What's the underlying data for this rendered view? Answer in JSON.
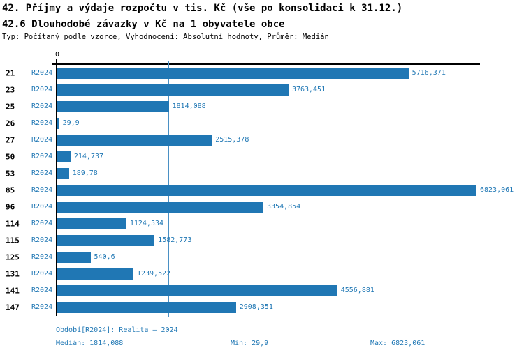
{
  "colors": {
    "accent_text": "#1f77b4",
    "bar": "#2077b4",
    "median_line": "#4a90c4",
    "axis": "#000000"
  },
  "header": {
    "title": "42. Příjmy a výdaje rozpočtu v tis. Kč (vše po konsolidaci k 31.12.)",
    "subtitle": "42.6 Dlouhodobé závazky v Kč na 1 obyvatele obce",
    "meta": "Typ: Počítaný podle vzorce, Vyhodnocení: Absolutní hodnoty, Průměr: Medián"
  },
  "chart_data": {
    "type": "bar",
    "orientation": "horizontal",
    "title": "42.6 Dlouhodobé závazky v Kč na 1 obyvatele obce",
    "series_label": "R2024",
    "categories": [
      "21",
      "23",
      "25",
      "26",
      "27",
      "50",
      "53",
      "85",
      "96",
      "114",
      "115",
      "125",
      "131",
      "141",
      "147"
    ],
    "values": [
      5716.371,
      3763.451,
      1814.088,
      29.9,
      2515.378,
      214.737,
      189.78,
      6823.061,
      3354.854,
      1124.534,
      1582.773,
      540.6,
      1239.522,
      4556.881,
      2908.351
    ],
    "value_labels": [
      "5716,371",
      "3763,451",
      "1814,088",
      "29,9",
      "2515,378",
      "214,737",
      "189,78",
      "6823,061",
      "3354,854",
      "1124,534",
      "1582,773",
      "540,6",
      "1239,522",
      "4556,881",
      "2908,351"
    ],
    "x_tick_labels": [
      "0"
    ],
    "xlim": [
      0,
      6823.061
    ],
    "median_value": 1814.088,
    "grid": false,
    "legend": "none"
  },
  "footer": {
    "period": "Období[R2024]: Realita – 2024",
    "median": "Medián: 1814,088",
    "min": "Min: 29,9",
    "max": "Max: 6823,061"
  }
}
